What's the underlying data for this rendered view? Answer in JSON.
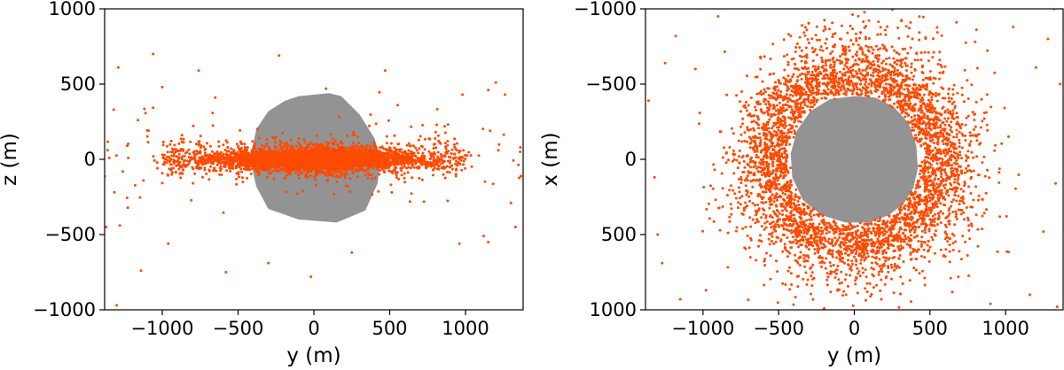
{
  "colors": {
    "particles": "#ff4a00",
    "body": "#939393",
    "axes": "#000000"
  },
  "chart_data": [
    {
      "type": "scatter",
      "xlabel": "y (m)",
      "ylabel": "z (m)",
      "xlim": [
        -1380,
        1380
      ],
      "ylim": [
        -1000,
        1000
      ],
      "xticks": [
        -1000,
        -500,
        0,
        500,
        1000
      ],
      "xtick_labels": [
        "−1000",
        "−500",
        "0",
        "500",
        "1000"
      ],
      "yticks": [
        1000,
        500,
        0,
        -500,
        -1000
      ],
      "ytick_labels": [
        "1000",
        "500",
        "0",
        "−500",
        "−1000"
      ],
      "y_inverted": false,
      "grid": false,
      "body_outline": [
        [
          -190,
          390
        ],
        [
          -100,
          420
        ],
        [
          100,
          440
        ],
        [
          180,
          420
        ],
        [
          300,
          300
        ],
        [
          400,
          140
        ],
        [
          440,
          0
        ],
        [
          420,
          -160
        ],
        [
          340,
          -340
        ],
        [
          150,
          -420
        ],
        [
          -100,
          -400
        ],
        [
          -300,
          -330
        ],
        [
          -380,
          -180
        ],
        [
          -420,
          0
        ],
        [
          -380,
          200
        ],
        [
          -300,
          320
        ]
      ],
      "particles": {
        "distribution": "thin disk around z = 0 with sparse outliers",
        "x_range": [
          -1380,
          1380
        ],
        "z_half_thickness_core": 130,
        "outlier_points": [
          [
            -1290,
            610
          ],
          [
            -1060,
            700
          ],
          [
            -760,
            590
          ],
          [
            -230,
            690
          ],
          [
            -650,
            410
          ],
          [
            -1000,
            480
          ],
          [
            -1160,
            260
          ],
          [
            -1320,
            330
          ],
          [
            -1140,
            -740
          ],
          [
            -1280,
            -440
          ],
          [
            -960,
            -560
          ],
          [
            -580,
            -750
          ],
          [
            -300,
            -690
          ],
          [
            -20,
            -780
          ],
          [
            250,
            -620
          ],
          [
            470,
            590
          ],
          [
            980,
            430
          ],
          [
            1150,
            460
          ],
          [
            1200,
            510
          ],
          [
            1260,
            430
          ],
          [
            1150,
            -550
          ],
          [
            1300,
            -290
          ],
          [
            1330,
            -450
          ],
          [
            960,
            -560
          ],
          [
            1120,
            -510
          ],
          [
            -1300,
            -970
          ],
          [
            -1370,
            -450
          ],
          [
            1360,
            50
          ],
          [
            -1360,
            60
          ],
          [
            80,
            470
          ]
        ]
      }
    },
    {
      "type": "scatter",
      "xlabel": "y (m)",
      "ylabel": "x (m)",
      "xlim": [
        -1380,
        1380
      ],
      "ylim": [
        1000,
        -1000
      ],
      "xticks": [
        -1000,
        -500,
        0,
        500,
        1000
      ],
      "xtick_labels": [
        "−1000",
        "−500",
        "0",
        "500",
        "1000"
      ],
      "yticks": [
        -1000,
        -500,
        0,
        500,
        1000
      ],
      "ytick_labels": [
        "−1000",
        "−500",
        "0",
        "500",
        "1000"
      ],
      "y_inverted": true,
      "grid": false,
      "body_outline": [
        [
          0,
          -420
        ],
        [
          140,
          -410
        ],
        [
          260,
          -350
        ],
        [
          360,
          -240
        ],
        [
          410,
          -90
        ],
        [
          420,
          60
        ],
        [
          390,
          190
        ],
        [
          330,
          290
        ],
        [
          230,
          370
        ],
        [
          100,
          420
        ],
        [
          -60,
          420
        ],
        [
          -220,
          370
        ],
        [
          -340,
          270
        ],
        [
          -410,
          120
        ],
        [
          -420,
          -40
        ],
        [
          -380,
          -190
        ],
        [
          -290,
          -320
        ],
        [
          -160,
          -400
        ]
      ],
      "particles": {
        "distribution": "dense ring around the body, fading outward",
        "inner_radius": 420,
        "x_range": [
          -1380,
          1380
        ],
        "outlier_points": [
          [
            -1180,
            -820
          ],
          [
            -1250,
            -640
          ],
          [
            -1360,
            -390
          ],
          [
            -1320,
            120
          ],
          [
            -1300,
            500
          ],
          [
            -1270,
            690
          ],
          [
            -1150,
            930
          ],
          [
            -980,
            870
          ],
          [
            1280,
            -800
          ],
          [
            1200,
            -610
          ],
          [
            1360,
            -500
          ],
          [
            1330,
            160
          ],
          [
            1250,
            480
          ],
          [
            1160,
            900
          ],
          [
            1340,
            980
          ],
          [
            1050,
            -880
          ],
          [
            -1050,
            -600
          ],
          [
            1320,
            -1000
          ],
          [
            -900,
            -950
          ],
          [
            900,
            960
          ]
        ]
      }
    }
  ]
}
